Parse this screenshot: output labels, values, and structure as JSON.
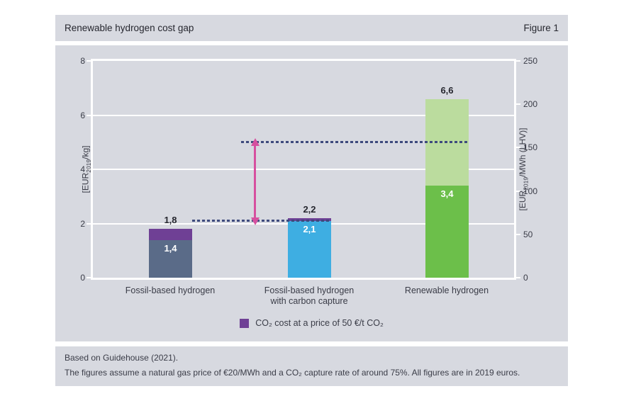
{
  "header": {
    "title": "Renewable hydrogen cost gap",
    "figure_label": "Figure 1"
  },
  "chart_data": {
    "type": "bar",
    "stacked": true,
    "title": "Renewable hydrogen cost gap",
    "grid": true,
    "legend_position": "bottom",
    "categories": [
      "Fossil-based hydrogen",
      "Fossil-based hydrogen\nwith carbon capture",
      "Renewable hydrogen"
    ],
    "axis_left": {
      "label_parts": [
        "[EUR",
        "2019",
        "/kg]"
      ],
      "range": [
        0,
        8
      ],
      "tick_labels": [
        "8",
        "6",
        "4",
        "2",
        "0"
      ],
      "tick_values": [
        8,
        6,
        4,
        2,
        0
      ]
    },
    "axis_right": {
      "label_parts": [
        "[EUR",
        "2019",
        "/MWh (LHV)]"
      ],
      "range": [
        0,
        250
      ],
      "tick_labels": [
        "250",
        "200",
        "150",
        "100",
        "50",
        "0"
      ],
      "tick_values": [
        250,
        200,
        150,
        100,
        50,
        0
      ]
    },
    "bars": [
      {
        "category": "Fossil-based hydrogen",
        "total": 1.8,
        "total_label": "1,8",
        "segments": [
          {
            "name": "hydrogen-cost",
            "value": 1.4,
            "label": "1,4",
            "color": "#5a6b88"
          },
          {
            "name": "co2-cost",
            "value": 0.4,
            "label": "",
            "color": "#6f4095"
          }
        ]
      },
      {
        "category": "Fossil-based hydrogen\nwith carbon capture",
        "total": 2.2,
        "total_label": "2,2",
        "segments": [
          {
            "name": "hydrogen-cost",
            "value": 2.1,
            "label": "2,1",
            "color": "#3eaee2"
          },
          {
            "name": "co2-cost",
            "value": 0.1,
            "label": "",
            "color": "#6f4095"
          }
        ]
      },
      {
        "category": "Renewable hydrogen",
        "total": 6.6,
        "total_label": "6,6",
        "segments": [
          {
            "name": "hydrogen-cost-lower",
            "value": 3.4,
            "label": "3,4",
            "color": "#6cbf4a"
          },
          {
            "name": "hydrogen-cost-upper",
            "value": 3.2,
            "label": "",
            "color": "#bbdc9e"
          }
        ]
      }
    ],
    "reference_lines": [
      {
        "name": "fossil-based-cost-level",
        "value": 2.1,
        "color": "#3d4a7d"
      },
      {
        "name": "renewable-cost-level",
        "value": 5.0,
        "color": "#3d4a7d"
      }
    ],
    "gap_arrow": {
      "from": 2.1,
      "to": 5.0,
      "color": "#d6509f"
    }
  },
  "legend": {
    "label": "CO₂ cost at a price of 50 €/t CO₂",
    "color": "#6f4095"
  },
  "footer": {
    "line1": "Based on Guidehouse (2021).",
    "line2": "The figures assume a natural gas price of €20/MWh and a CO₂ capture rate of around 75%. All figures are in 2019 euros."
  },
  "colors": {
    "panel_bg": "#d7d9e0",
    "grid": "#ffffff",
    "text_dark": "#26272f",
    "text": "#3a3c47"
  }
}
